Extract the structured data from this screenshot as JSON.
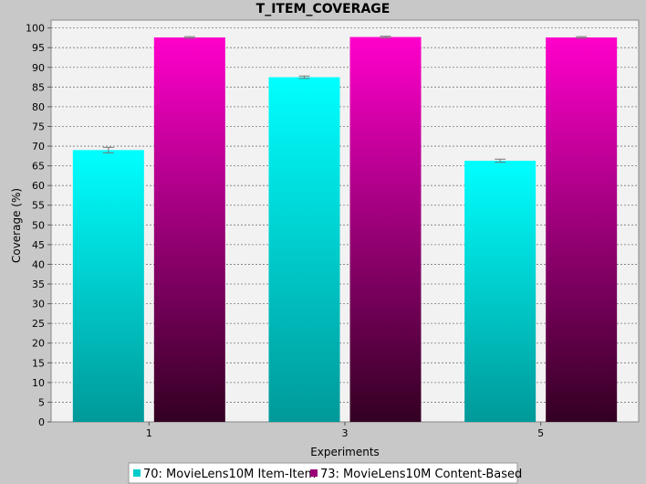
{
  "chart_data": {
    "type": "bar",
    "title": "T_ITEM_COVERAGE",
    "xlabel": "Experiments",
    "ylabel": "Coverage (%)",
    "categories": [
      "1",
      "3",
      "5"
    ],
    "ylim": [
      0,
      102
    ],
    "yticks": [
      0,
      5,
      10,
      15,
      20,
      25,
      30,
      35,
      40,
      45,
      50,
      55,
      60,
      65,
      70,
      75,
      80,
      85,
      90,
      95,
      100
    ],
    "grid": true,
    "legend_position": "bottom",
    "series": [
      {
        "name": "70: MovieLens10M Item-Item",
        "values": [
          69.0,
          87.5,
          66.3
        ],
        "errors": [
          0.7,
          0.3,
          0.4
        ],
        "color_top": "#00ffff",
        "color_bottom": "#009999"
      },
      {
        "name": "73: MovieLens10M Content-Based",
        "values": [
          97.6,
          97.7,
          97.6
        ],
        "errors": [
          0.2,
          0.2,
          0.2
        ],
        "color_top": "#ff00cc",
        "color_bottom": "#330022"
      }
    ]
  }
}
